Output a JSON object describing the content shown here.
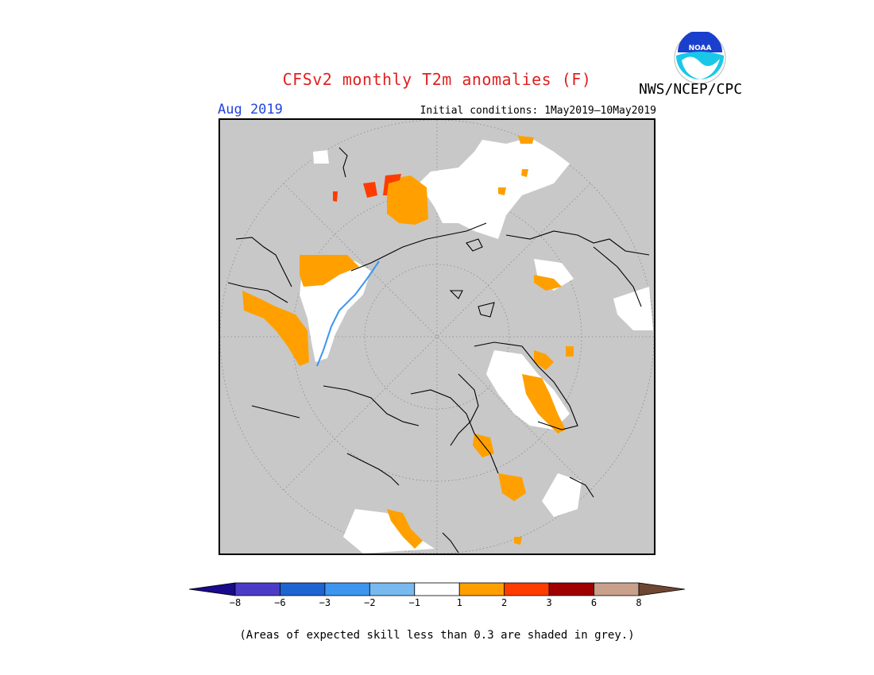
{
  "header": {
    "title": "CFSv2 monthly T2m anomalies (F)",
    "agency": "NWS/NCEP/CPC",
    "logo_text": "NOAA",
    "valid_month": "Aug 2019",
    "initial_conditions": "Initial conditions: 1May2019—10May2019"
  },
  "map": {
    "projection": "north-polar-stereographic",
    "background_color": "#c8c8c8",
    "land_outline_color": "#000000"
  },
  "colorbar": {
    "bins": [
      {
        "color": "#1a0a8c"
      },
      {
        "color": "#4b3cc8"
      },
      {
        "color": "#1e64d2"
      },
      {
        "color": "#3c96f0"
      },
      {
        "color": "#78b9f0"
      },
      {
        "color": "#ffffff"
      },
      {
        "color": "#ffa000"
      },
      {
        "color": "#ff3c00"
      },
      {
        "color": "#a00000"
      },
      {
        "color": "#c8a08c"
      },
      {
        "color": "#6e4632"
      }
    ],
    "labels": [
      "−8",
      "−6",
      "−3",
      "−2",
      "−1",
      "1",
      "2",
      "3",
      "6",
      "8"
    ]
  },
  "footnote": "(Areas of expected skill less than 0.3 are shaded in grey.)"
}
